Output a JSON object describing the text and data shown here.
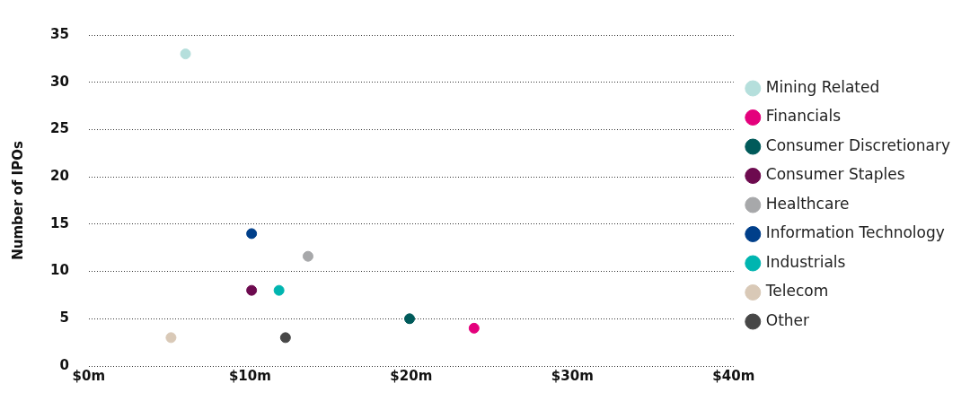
{
  "chart_data": {
    "type": "scatter",
    "ylabel": "Number of IPOs",
    "xlim": [
      0,
      40
    ],
    "xticks": [
      {
        "value": 0,
        "label": "$0m"
      },
      {
        "value": 10,
        "label": "$10m"
      },
      {
        "value": 20,
        "label": "$20m"
      },
      {
        "value": 30,
        "label": "$30m"
      },
      {
        "value": 40,
        "label": "$40m"
      }
    ],
    "ylim": [
      0,
      35
    ],
    "yticks": [
      0,
      5,
      10,
      15,
      20,
      25,
      30,
      35
    ],
    "grid": "y",
    "legend": "right",
    "marker": "circle",
    "series": [
      {
        "name": "Mining Related",
        "color": "#b5dfdc",
        "x": [
          6
        ],
        "values": [
          33
        ]
      },
      {
        "name": "Financials",
        "color": "#e4007c",
        "x": [
          23.9
        ],
        "values": [
          4
        ]
      },
      {
        "name": "Consumer Discretionary",
        "color": "#005a5a",
        "x": [
          19.9
        ],
        "values": [
          5
        ]
      },
      {
        "name": "Consumer Staples",
        "color": "#6d0a4f",
        "x": [
          10.1
        ],
        "values": [
          8
        ]
      },
      {
        "name": "Healthcare",
        "color": "#a7a8aa",
        "x": [
          13.6
        ],
        "values": [
          11.6
        ]
      },
      {
        "name": "Information Technology",
        "color": "#003f8a",
        "x": [
          10.1
        ],
        "values": [
          14
        ]
      },
      {
        "name": "Industrials",
        "color": "#00b5b0",
        "x": [
          11.8
        ],
        "values": [
          8
        ]
      },
      {
        "name": "Telecom",
        "color": "#d9c9b7",
        "x": [
          5.1
        ],
        "values": [
          3
        ]
      },
      {
        "name": "Other",
        "color": "#474747",
        "x": [
          12.2
        ],
        "values": [
          3
        ]
      }
    ]
  }
}
